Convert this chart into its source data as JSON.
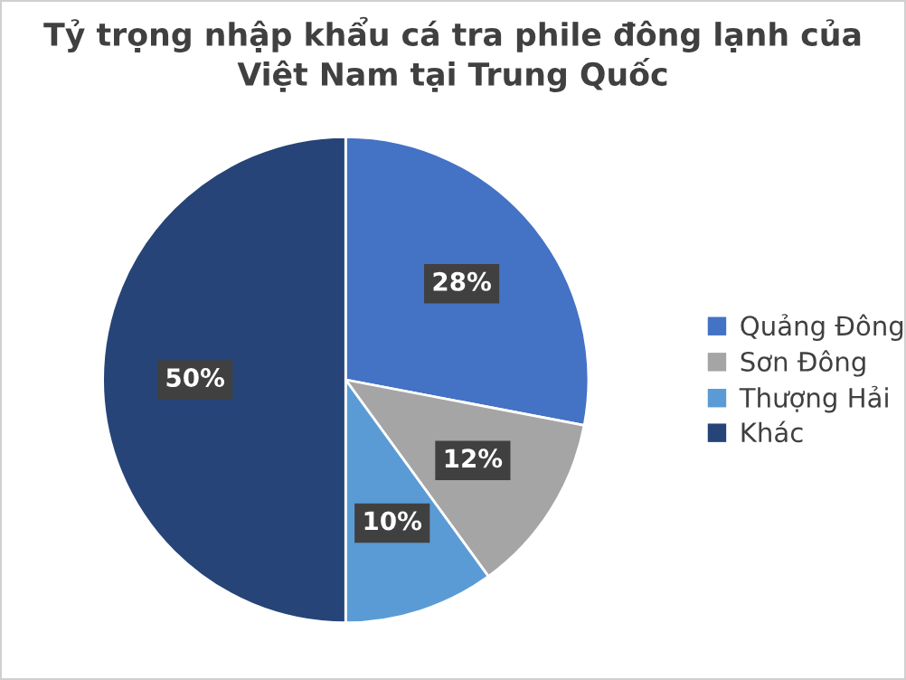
{
  "chart_data": {
    "type": "pie",
    "title": "Tỷ trọng nhập khẩu cá tra phile đông lạnh của\nViệt Nam tại Trung Quốc",
    "categories": [
      "Quảng Đông",
      "Sơn Đông",
      "Thượng Hải",
      "Khác"
    ],
    "values": [
      28,
      12,
      10,
      50
    ],
    "colors": [
      "#4472c4",
      "#a5a5a5",
      "#5b9bd5",
      "#264478"
    ],
    "value_labels": [
      "28%",
      "12%",
      "10%",
      "50%"
    ],
    "legend": "right"
  }
}
